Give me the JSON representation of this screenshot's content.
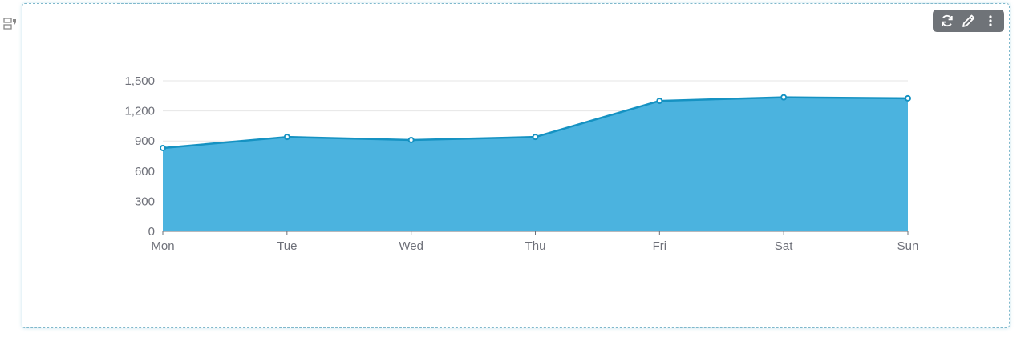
{
  "icons": {
    "drag": "drag-handle-icon",
    "refresh": "refresh-icon",
    "edit": "pencil-icon",
    "more": "more-vertical-icon"
  },
  "colors": {
    "area_fill": "#4bb3df",
    "line": "#1592c2",
    "grid": "#e6e6e6",
    "axis": "#6e7079",
    "toolbar_bg": "#6f7378",
    "panel_border": "#7fb8cc"
  },
  "chart_data": {
    "type": "area",
    "categories": [
      "Mon",
      "Tue",
      "Wed",
      "Thu",
      "Fri",
      "Sat",
      "Sun"
    ],
    "values": [
      830,
      940,
      910,
      940,
      1300,
      1335,
      1325
    ],
    "y_ticks": [
      "0",
      "300",
      "600",
      "900",
      "1,200",
      "1,500"
    ],
    "ylim": [
      0,
      1500
    ],
    "grid": true,
    "legend": "none",
    "title": "",
    "xlabel": "",
    "ylabel": ""
  }
}
